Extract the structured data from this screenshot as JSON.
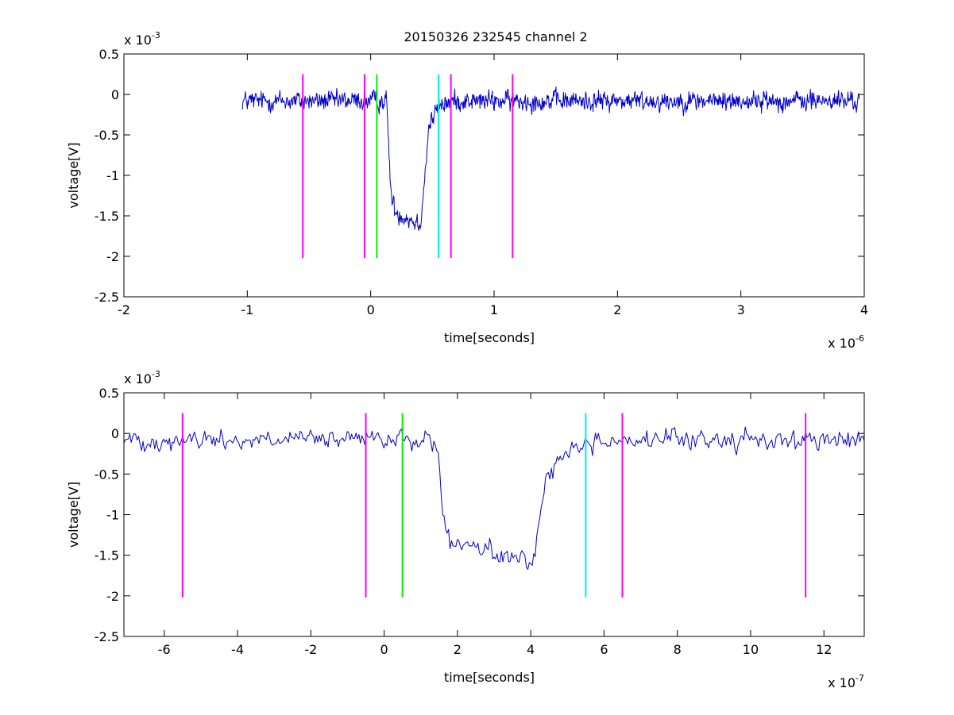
{
  "figure": {
    "title": "20150326 232545 channel 2"
  },
  "chart_data": [
    {
      "type": "line",
      "title": "20150326 232545 channel 2",
      "xlabel": "time[seconds]",
      "ylabel": "voltage[V]",
      "x_multiplier": {
        "base": "x 10",
        "exponent": "-6"
      },
      "y_multiplier": {
        "base": "x 10",
        "exponent": "-3"
      },
      "xlim": [
        -2,
        4
      ],
      "ylim": [
        -2.5,
        0.5
      ],
      "xticks": [
        -2,
        -1,
        0,
        1,
        2,
        3,
        4
      ],
      "xtick_labels": [
        "-2",
        "-1",
        "0",
        "1",
        "2",
        "3",
        "4"
      ],
      "yticks": [
        -2.5,
        -2,
        -1.5,
        -1,
        -0.5,
        0,
        0.5
      ],
      "ytick_labels": [
        "-2.5",
        "-2",
        "-1.5",
        "-1",
        "-0.5",
        "0",
        "0.5"
      ],
      "grid": false,
      "series": [
        {
          "color": "#0000cc",
          "x_range": [
            -1.04,
            3.96
          ],
          "points": 1250,
          "noise_amplitude": 0.1,
          "shape": [
            [
              -1.04,
              -0.08
            ],
            [
              0.13,
              -0.08
            ],
            [
              0.15,
              -0.8
            ],
            [
              0.17,
              -1.3
            ],
            [
              0.2,
              -1.45
            ],
            [
              0.4,
              -1.6
            ],
            [
              0.44,
              -1.0
            ],
            [
              0.47,
              -0.4
            ],
            [
              0.55,
              -0.15
            ],
            [
              0.65,
              -0.08
            ],
            [
              3.96,
              -0.08
            ]
          ]
        }
      ],
      "markers": [
        {
          "x": -0.55,
          "y_from": -2.02,
          "y_to": 0.25,
          "color": "#ff00ff"
        },
        {
          "x": -0.05,
          "y_from": -2.02,
          "y_to": 0.25,
          "color": "#ff00ff"
        },
        {
          "x": 0.05,
          "y_from": -2.02,
          "y_to": 0.25,
          "color": "#00ee00"
        },
        {
          "x": 0.55,
          "y_from": -2.02,
          "y_to": 0.25,
          "color": "#00eeee"
        },
        {
          "x": 0.65,
          "y_from": -2.02,
          "y_to": 0.25,
          "color": "#ff00ff"
        },
        {
          "x": 1.15,
          "y_from": -2.02,
          "y_to": 0.25,
          "color": "#ff00ff"
        }
      ]
    },
    {
      "type": "line",
      "title": "",
      "xlabel": "time[seconds]",
      "ylabel": "voltage[V]",
      "x_multiplier": {
        "base": "x 10",
        "exponent": "-7"
      },
      "y_multiplier": {
        "base": "x 10",
        "exponent": "-3"
      },
      "xlim": [
        -7.1,
        13.1
      ],
      "ylim": [
        -2.5,
        0.5
      ],
      "xticks": [
        -6,
        -4,
        -2,
        0,
        2,
        4,
        6,
        8,
        10,
        12
      ],
      "xtick_labels": [
        "-6",
        "-4",
        "-2",
        "0",
        "2",
        "4",
        "6",
        "8",
        "10",
        "12"
      ],
      "yticks": [
        -2.5,
        -2,
        -1.5,
        -1,
        -0.5,
        0,
        0.5
      ],
      "ytick_labels": [
        "-2.5",
        "-2",
        "-1.5",
        "-1",
        "-0.5",
        "0",
        "0.5"
      ],
      "grid": false,
      "series": [
        {
          "color": "#0000cc",
          "x_range": [
            -7.1,
            13.1
          ],
          "points": 505,
          "noise_amplitude": 0.1,
          "shape": [
            [
              -7.1,
              -0.08
            ],
            [
              1.35,
              -0.08
            ],
            [
              1.5,
              -0.4
            ],
            [
              1.6,
              -1.0
            ],
            [
              1.75,
              -1.35
            ],
            [
              2.5,
              -1.4
            ],
            [
              3.5,
              -1.55
            ],
            [
              4.0,
              -1.6
            ],
            [
              4.2,
              -1.2
            ],
            [
              4.4,
              -0.6
            ],
            [
              4.7,
              -0.35
            ],
            [
              5.3,
              -0.15
            ],
            [
              6.0,
              -0.08
            ],
            [
              13.1,
              -0.08
            ]
          ]
        }
      ],
      "markers": [
        {
          "x": -5.5,
          "y_from": -2.02,
          "y_to": 0.25,
          "color": "#ff00ff"
        },
        {
          "x": -0.5,
          "y_from": -2.02,
          "y_to": 0.25,
          "color": "#ff00ff"
        },
        {
          "x": 0.5,
          "y_from": -2.02,
          "y_to": 0.25,
          "color": "#00ee00"
        },
        {
          "x": 5.5,
          "y_from": -2.02,
          "y_to": 0.25,
          "color": "#00eeee"
        },
        {
          "x": 6.5,
          "y_from": -2.02,
          "y_to": 0.25,
          "color": "#ff00ff"
        },
        {
          "x": 11.5,
          "y_from": -2.02,
          "y_to": 0.25,
          "color": "#ff00ff"
        }
      ]
    }
  ]
}
